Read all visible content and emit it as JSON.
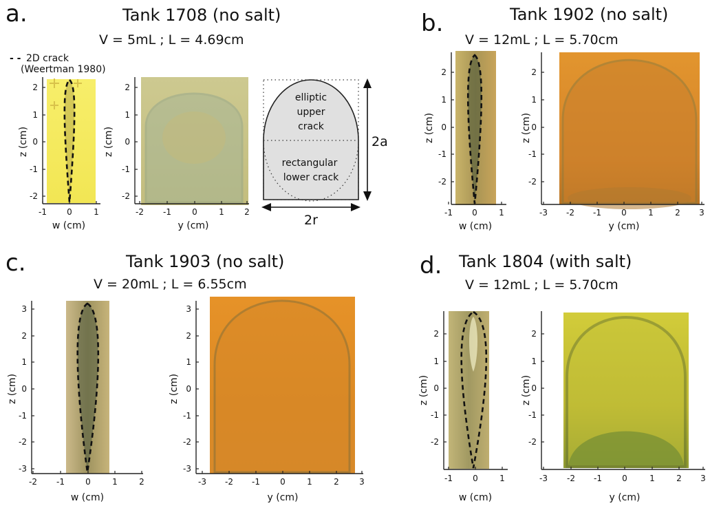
{
  "panels": {
    "a": {
      "letter": "a.",
      "title": "Tank 1708  (no salt)",
      "subtitle": "V = 5mL ; L = 4.69cm",
      "legend_dash": "- -",
      "legend_line1": "2D crack",
      "legend_line2": "(Weertman 1980)",
      "w_ticks": [
        "-1",
        "0",
        "1"
      ],
      "z_ticks": [
        "2",
        "1",
        "0",
        "-1",
        "-2"
      ],
      "y_ticks": [
        "-2",
        "-1",
        "0",
        "1",
        "2"
      ],
      "w_label": "w (cm)",
      "y_label": "y (cm)",
      "z_label": "z (cm)",
      "schematic": {
        "upper_label": [
          "elliptic",
          "upper",
          "crack"
        ],
        "lower_label": [
          "rectangular",
          "lower crack"
        ],
        "height_label": "2a",
        "width_label": "2r"
      }
    },
    "b": {
      "letter": "b.",
      "title": "Tank 1902 (no salt)",
      "subtitle": "V = 12mL ; L = 5.70cm",
      "w_ticks": [
        "-1",
        "0",
        "1"
      ],
      "z_ticks": [
        "2",
        "1",
        "0",
        "-1",
        "-2"
      ],
      "y_ticks": [
        "-3",
        "-2",
        "-1",
        "0",
        "1",
        "2",
        "3"
      ],
      "w_label": "w (cm)",
      "y_label": "y (cm)",
      "z_label": "z (cm)"
    },
    "c": {
      "letter": "c.",
      "title": "Tank 1903  (no salt)",
      "subtitle": "V = 20mL ; L = 6.55cm",
      "w_ticks": [
        "-2",
        "-1",
        "0",
        "1",
        "2"
      ],
      "z_ticks": [
        "3",
        "2",
        "1",
        "0",
        "-1",
        "-2",
        "-3"
      ],
      "y_ticks": [
        "-3",
        "-2",
        "-1",
        "0",
        "1",
        "2",
        "3"
      ],
      "w_label": "w (cm)",
      "y_label": "y (cm)",
      "z_label": "z (cm)"
    },
    "d": {
      "letter": "d.",
      "title": "Tank 1804 (with salt)",
      "subtitle": "V = 12mL ; L = 5.70cm",
      "w_ticks": [
        "-1",
        "0",
        "1"
      ],
      "z_ticks": [
        "2",
        "1",
        "0",
        "-1",
        "-2"
      ],
      "y_ticks": [
        "-3",
        "-2",
        "-1",
        "0",
        "1",
        "2",
        "3"
      ],
      "w_label": "w (cm)",
      "y_label": "y (cm)",
      "z_label": "z (cm)"
    }
  },
  "colors": {
    "a_side": "#f4ea5c",
    "a_front": "#c9c58a",
    "b_side": "#b8a862",
    "b_front": "#d88a2a",
    "c_side": "#c2b27a",
    "c_front": "#dc8a24",
    "d_side": "#b8a86a",
    "d_front": "#c8c430",
    "schematic_fill": "#e0e0e0"
  }
}
